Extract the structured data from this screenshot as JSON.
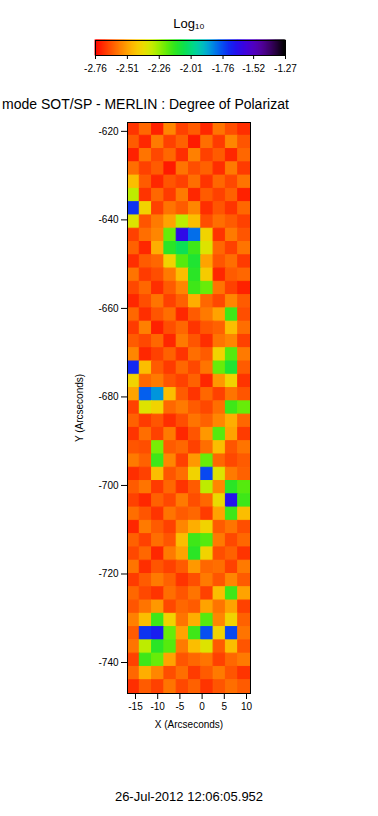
{
  "chart_data": {
    "type": "heatmap",
    "title": "mode SOT/SP - MERLIN : Degree of Polarizat",
    "x_label": "X (Arcseconds)",
    "y_label": "Y (Arcseconds)",
    "date": "26-Jul-2012 12:06:05.952",
    "xlim": [
      -16.8,
      10.9
    ],
    "ylim": [
      -747,
      -618
    ],
    "xticks": [
      -15,
      -10,
      -5,
      0,
      5,
      10
    ],
    "yticks": [
      -740,
      -720,
      -700,
      -680,
      -660,
      -640,
      -620
    ],
    "colorbar": {
      "label": "Log₁₀",
      "range": [
        -2.76,
        -1.27
      ],
      "ticks": [
        -2.76,
        -2.51,
        -2.26,
        -2.01,
        -1.76,
        -1.52,
        -1.27
      ]
    },
    "x_edges": [
      -16.8,
      -14.03,
      -11.26,
      -8.49,
      -5.72,
      -2.95,
      -0.18,
      2.59,
      5.36,
      8.13,
      10.9
    ],
    "y_edges": [
      -618,
      -621,
      -624,
      -627,
      -630,
      -633,
      -636,
      -639,
      -642,
      -645,
      -648,
      -651,
      -654,
      -657,
      -660,
      -663,
      -666,
      -669,
      -672,
      -675,
      -678,
      -681,
      -684,
      -687,
      -690,
      -693,
      -696,
      -699,
      -702,
      -705,
      -708,
      -711,
      -714,
      -717,
      -720,
      -723,
      -726,
      -729,
      -732,
      -735,
      -738,
      -741,
      -744,
      -747
    ],
    "cells": [
      [
        -2.68,
        -2.6,
        -2.71,
        -2.55,
        -2.66,
        -2.62,
        -2.7,
        -2.58,
        -2.64,
        -2.69
      ],
      [
        -2.62,
        -2.7,
        -2.57,
        -2.66,
        -2.61,
        -2.72,
        -2.59,
        -2.67,
        -2.55,
        -2.63
      ],
      [
        -2.71,
        -2.58,
        -2.65,
        -2.6,
        -2.69,
        -2.56,
        -2.66,
        -2.62,
        -2.7,
        -2.6
      ],
      [
        -2.59,
        -2.66,
        -2.62,
        -2.72,
        -2.58,
        -2.64,
        -2.61,
        -2.69,
        -2.57,
        -2.67
      ],
      [
        -2.45,
        -2.62,
        -2.7,
        -2.63,
        -2.66,
        -2.59,
        -2.68,
        -2.6,
        -2.65,
        -2.58
      ],
      [
        -2.3,
        -2.68,
        -2.6,
        -2.67,
        -2.57,
        -2.7,
        -2.62,
        -2.66,
        -2.61,
        -2.71
      ],
      [
        -1.72,
        -2.4,
        -2.66,
        -2.58,
        -2.62,
        -2.55,
        -2.69,
        -2.63,
        -2.68,
        -2.6
      ],
      [
        -2.35,
        -2.63,
        -2.57,
        -2.5,
        -2.3,
        -2.45,
        -2.64,
        -2.59,
        -2.62,
        -2.66
      ],
      [
        -2.66,
        -2.59,
        -2.55,
        -2.2,
        -1.62,
        -1.8,
        -2.4,
        -2.68,
        -2.57,
        -2.63
      ],
      [
        -2.61,
        -2.7,
        -2.48,
        -2.12,
        -2.05,
        -2.15,
        -2.35,
        -2.6,
        -2.66,
        -2.58
      ],
      [
        -2.69,
        -2.62,
        -2.6,
        -2.4,
        -2.18,
        -2.1,
        -2.5,
        -2.63,
        -2.59,
        -2.67
      ],
      [
        -2.58,
        -2.67,
        -2.64,
        -2.57,
        -2.45,
        -2.12,
        -2.42,
        -2.7,
        -2.62,
        -2.6
      ],
      [
        -2.65,
        -2.6,
        -2.69,
        -2.62,
        -2.55,
        -2.15,
        -2.2,
        -2.58,
        -2.66,
        -2.71
      ],
      [
        -2.7,
        -2.64,
        -2.58,
        -2.66,
        -2.61,
        -2.48,
        -2.6,
        -2.65,
        -2.55,
        -2.62
      ],
      [
        -2.6,
        -2.69,
        -2.63,
        -2.59,
        -2.7,
        -2.62,
        -2.57,
        -2.5,
        -2.15,
        -2.64
      ],
      [
        -2.67,
        -2.56,
        -2.71,
        -2.64,
        -2.6,
        -2.68,
        -2.63,
        -2.61,
        -2.45,
        -2.59
      ],
      [
        -2.62,
        -2.65,
        -2.6,
        -2.7,
        -2.57,
        -2.63,
        -2.69,
        -2.58,
        -2.55,
        -2.66
      ],
      [
        -2.55,
        -2.7,
        -2.66,
        -2.61,
        -2.68,
        -2.59,
        -2.62,
        -2.4,
        -2.18,
        -2.57
      ],
      [
        -1.7,
        -2.45,
        -2.62,
        -2.67,
        -2.6,
        -2.65,
        -2.58,
        -2.2,
        -2.1,
        -2.62
      ],
      [
        -2.4,
        -2.6,
        -2.57,
        -2.63,
        -2.66,
        -2.61,
        -2.7,
        -2.52,
        -2.4,
        -2.68
      ],
      [
        -2.5,
        -1.78,
        -1.85,
        -2.45,
        -2.62,
        -2.68,
        -2.6,
        -2.66,
        -2.58,
        -2.63
      ],
      [
        -2.66,
        -2.35,
        -2.4,
        -2.6,
        -2.57,
        -2.62,
        -2.65,
        -2.59,
        -2.15,
        -2.2
      ],
      [
        -2.61,
        -2.67,
        -2.63,
        -2.69,
        -2.64,
        -2.58,
        -2.61,
        -2.55,
        -2.48,
        -2.6
      ],
      [
        -2.68,
        -2.59,
        -2.66,
        -2.57,
        -2.7,
        -2.63,
        -2.52,
        -2.18,
        -2.5,
        -2.67
      ],
      [
        -2.63,
        -2.64,
        -2.22,
        -2.62,
        -2.6,
        -2.66,
        -2.59,
        -2.45,
        -2.63,
        -2.58
      ],
      [
        -2.57,
        -2.61,
        -2.15,
        -2.55,
        -2.66,
        -2.52,
        -2.2,
        -2.6,
        -2.65,
        -2.62
      ],
      [
        -2.69,
        -2.66,
        -2.45,
        -2.63,
        -2.59,
        -2.4,
        -1.75,
        -2.35,
        -2.57,
        -2.61
      ],
      [
        -2.62,
        -2.58,
        -2.67,
        -2.6,
        -2.68,
        -2.62,
        -2.3,
        -2.55,
        -2.12,
        -2.18
      ],
      [
        -2.66,
        -2.7,
        -2.61,
        -2.65,
        -2.57,
        -2.64,
        -2.6,
        -2.38,
        -1.65,
        -2.15
      ],
      [
        -2.59,
        -2.63,
        -2.68,
        -2.58,
        -2.62,
        -2.6,
        -2.67,
        -2.5,
        -2.15,
        -2.45
      ],
      [
        -2.7,
        -2.57,
        -2.62,
        -2.66,
        -2.55,
        -2.48,
        -2.4,
        -2.62,
        -2.58,
        -2.64
      ],
      [
        -2.61,
        -2.66,
        -2.59,
        -2.63,
        -2.45,
        -2.15,
        -2.18,
        -2.57,
        -2.65,
        -2.6
      ],
      [
        -2.65,
        -2.6,
        -2.7,
        -2.57,
        -2.5,
        -2.12,
        -2.4,
        -2.64,
        -2.61,
        -2.68
      ],
      [
        -2.58,
        -2.69,
        -2.63,
        -2.66,
        -2.62,
        -2.52,
        -2.6,
        -2.59,
        -2.66,
        -2.57
      ],
      [
        -2.67,
        -2.62,
        -2.57,
        -2.61,
        -2.68,
        -2.64,
        -2.57,
        -2.63,
        -2.55,
        -2.62
      ],
      [
        -2.6,
        -2.65,
        -2.68,
        -2.59,
        -2.63,
        -2.58,
        -2.66,
        -2.45,
        -2.15,
        -2.5
      ],
      [
        -2.63,
        -2.58,
        -2.52,
        -2.65,
        -2.6,
        -2.62,
        -2.5,
        -2.58,
        -2.5,
        -2.66
      ],
      [
        -2.56,
        -2.45,
        -2.15,
        -2.4,
        -2.58,
        -2.48,
        -2.18,
        -2.55,
        -2.4,
        -2.61
      ],
      [
        -2.62,
        -1.72,
        -1.68,
        -2.2,
        -2.5,
        -2.15,
        -1.76,
        -2.4,
        -1.75,
        -2.58
      ],
      [
        -2.58,
        -2.3,
        -2.12,
        -2.18,
        -2.57,
        -2.45,
        -2.35,
        -2.62,
        -2.45,
        -2.63
      ],
      [
        -2.66,
        -2.15,
        -2.2,
        -2.5,
        -2.63,
        -2.6,
        -2.58,
        -2.66,
        -2.6,
        -2.57
      ],
      [
        -2.6,
        -2.48,
        -2.55,
        -2.64,
        -2.59,
        -2.67,
        -2.62,
        -2.57,
        -2.63,
        -2.68
      ],
      [
        -2.69,
        -2.62,
        -2.66,
        -2.58,
        -2.65,
        -2.61,
        -2.68,
        -2.63,
        -2.59,
        -2.62
      ]
    ]
  }
}
